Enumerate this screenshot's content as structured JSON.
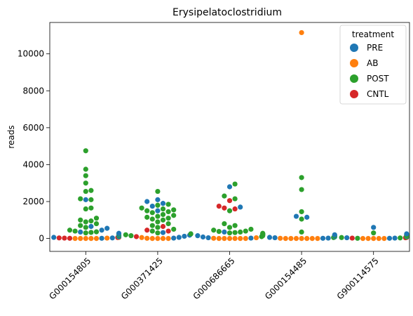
{
  "chart_data": {
    "type": "scatter",
    "title": "Erysipelatoclostridium",
    "xlabel": "",
    "ylabel": "reads",
    "categories": [
      "G000154805",
      "G000371425",
      "G000686665",
      "G000154485",
      "G900114575"
    ],
    "yticks": [
      0,
      2000,
      4000,
      6000,
      8000,
      10000
    ],
    "ytick_labels": [
      "0",
      "2000",
      "4000",
      "6000",
      "8000",
      "10000"
    ],
    "ylim": [
      -700,
      11700
    ],
    "grid": false,
    "legend": {
      "title": "treatment",
      "placement": "top-right"
    },
    "series": [
      {
        "name": "PRE",
        "color": "#1f77b4",
        "points": [
          [
            0,
            10
          ],
          [
            0,
            30
          ],
          [
            0,
            60
          ],
          [
            0,
            90
          ],
          [
            0,
            150
          ],
          [
            0,
            200
          ],
          [
            0,
            280
          ],
          [
            0,
            350
          ],
          [
            0,
            450
          ],
          [
            0,
            550
          ],
          [
            0,
            650
          ],
          [
            0,
            2100
          ],
          [
            1,
            20
          ],
          [
            1,
            60
          ],
          [
            1,
            120
          ],
          [
            1,
            180
          ],
          [
            1,
            250
          ],
          [
            1,
            320
          ],
          [
            1,
            1500
          ],
          [
            1,
            1750
          ],
          [
            1,
            1900
          ],
          [
            1,
            2000
          ],
          [
            1,
            2100
          ],
          [
            2,
            20
          ],
          [
            2,
            40
          ],
          [
            2,
            80
          ],
          [
            2,
            150
          ],
          [
            2,
            250
          ],
          [
            2,
            350
          ],
          [
            2,
            1700
          ],
          [
            2,
            2800
          ],
          [
            3,
            10
          ],
          [
            3,
            20
          ],
          [
            3,
            40
          ],
          [
            3,
            60
          ],
          [
            3,
            100
          ],
          [
            3,
            200
          ],
          [
            3,
            1150
          ],
          [
            3,
            1200
          ],
          [
            4,
            10
          ],
          [
            4,
            20
          ],
          [
            4,
            40
          ],
          [
            4,
            60
          ],
          [
            4,
            120
          ],
          [
            4,
            250
          ],
          [
            4,
            600
          ]
        ]
      },
      {
        "name": "AB",
        "color": "#ff7f0e",
        "points": [
          [
            0,
            0
          ],
          [
            0,
            0
          ],
          [
            0,
            0
          ],
          [
            0,
            0
          ],
          [
            0,
            0
          ],
          [
            0,
            20
          ],
          [
            0,
            60
          ],
          [
            1,
            0
          ],
          [
            1,
            0
          ],
          [
            1,
            0
          ],
          [
            1,
            0
          ],
          [
            1,
            10
          ],
          [
            1,
            50
          ],
          [
            2,
            0
          ],
          [
            2,
            0
          ],
          [
            2,
            0
          ],
          [
            2,
            0
          ],
          [
            2,
            0
          ],
          [
            2,
            0
          ],
          [
            2,
            10
          ],
          [
            2,
            40
          ],
          [
            3,
            0
          ],
          [
            3,
            0
          ],
          [
            3,
            0
          ],
          [
            3,
            0
          ],
          [
            3,
            0
          ],
          [
            3,
            0
          ],
          [
            3,
            0
          ],
          [
            3,
            10
          ],
          [
            3,
            11150
          ],
          [
            4,
            0
          ],
          [
            4,
            0
          ],
          [
            4,
            0
          ],
          [
            4,
            0
          ],
          [
            4,
            0
          ],
          [
            4,
            150
          ]
        ]
      },
      {
        "name": "POST",
        "color": "#2ca02c",
        "points": [
          [
            0,
            80
          ],
          [
            0,
            150
          ],
          [
            0,
            250
          ],
          [
            0,
            300
          ],
          [
            0,
            330
          ],
          [
            0,
            360
          ],
          [
            0,
            400
          ],
          [
            0,
            450
          ],
          [
            0,
            600
          ],
          [
            0,
            700
          ],
          [
            0,
            800
          ],
          [
            0,
            900
          ],
          [
            0,
            950
          ],
          [
            0,
            1000
          ],
          [
            0,
            1100
          ],
          [
            0,
            1600
          ],
          [
            0,
            1650
          ],
          [
            0,
            2100
          ],
          [
            0,
            2150
          ],
          [
            0,
            2550
          ],
          [
            0,
            2600
          ],
          [
            0,
            3000
          ],
          [
            0,
            3400
          ],
          [
            0,
            3750
          ],
          [
            0,
            4750
          ],
          [
            1,
            150
          ],
          [
            1,
            200
          ],
          [
            1,
            250
          ],
          [
            1,
            300
          ],
          [
            1,
            400
          ],
          [
            1,
            500
          ],
          [
            1,
            600
          ],
          [
            1,
            700
          ],
          [
            1,
            800
          ],
          [
            1,
            900
          ],
          [
            1,
            1000
          ],
          [
            1,
            1050
          ],
          [
            1,
            1100
          ],
          [
            1,
            1150
          ],
          [
            1,
            1200
          ],
          [
            1,
            1250
          ],
          [
            1,
            1300
          ],
          [
            1,
            1400
          ],
          [
            1,
            1450
          ],
          [
            1,
            1500
          ],
          [
            1,
            1550
          ],
          [
            1,
            1600
          ],
          [
            1,
            1650
          ],
          [
            1,
            1800
          ],
          [
            1,
            1850
          ],
          [
            1,
            2550
          ],
          [
            2,
            100
          ],
          [
            2,
            150
          ],
          [
            2,
            200
          ],
          [
            2,
            220
          ],
          [
            2,
            250
          ],
          [
            2,
            280
          ],
          [
            2,
            300
          ],
          [
            2,
            320
          ],
          [
            2,
            350
          ],
          [
            2,
            380
          ],
          [
            2,
            400
          ],
          [
            2,
            450
          ],
          [
            2,
            500
          ],
          [
            2,
            600
          ],
          [
            2,
            700
          ],
          [
            2,
            800
          ],
          [
            2,
            1500
          ],
          [
            2,
            2150
          ],
          [
            2,
            2300
          ],
          [
            2,
            2950
          ],
          [
            3,
            50
          ],
          [
            3,
            80
          ],
          [
            3,
            150
          ],
          [
            3,
            350
          ],
          [
            3,
            1050
          ],
          [
            3,
            1450
          ],
          [
            3,
            2650
          ],
          [
            3,
            3300
          ],
          [
            4,
            10
          ],
          [
            4,
            30
          ],
          [
            4,
            50
          ],
          [
            4,
            80
          ],
          [
            4,
            100
          ],
          [
            4,
            150
          ],
          [
            4,
            200
          ],
          [
            4,
            300
          ]
        ]
      },
      {
        "name": "CNTL",
        "color": "#d62728",
        "points": [
          [
            0,
            10
          ],
          [
            0,
            20
          ],
          [
            0,
            30
          ],
          [
            0,
            50
          ],
          [
            0,
            80
          ],
          [
            1,
            100
          ],
          [
            1,
            400
          ],
          [
            1,
            450
          ],
          [
            1,
            650
          ],
          [
            2,
            1600
          ],
          [
            2,
            1650
          ],
          [
            2,
            1750
          ],
          [
            2,
            2050
          ],
          [
            4,
            20
          ],
          [
            4,
            40
          ],
          [
            4,
            60
          ]
        ]
      }
    ]
  }
}
